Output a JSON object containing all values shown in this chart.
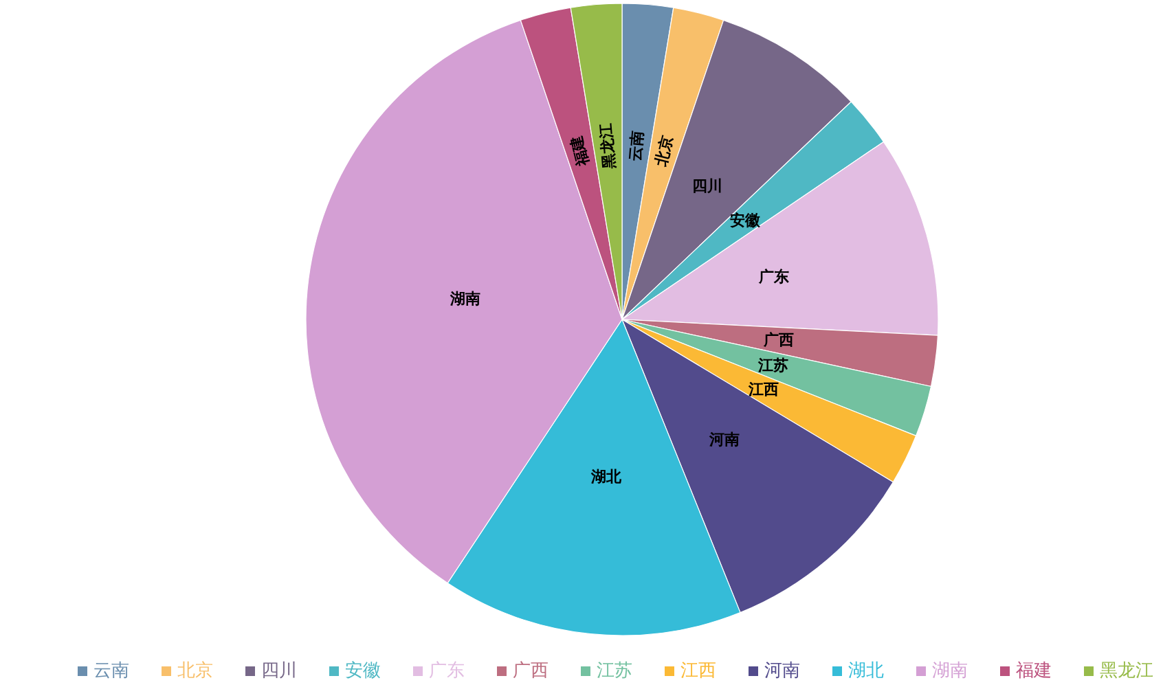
{
  "chart_data": {
    "type": "pie",
    "categories": [
      "云南",
      "北京",
      "四川",
      "安徽",
      "广东",
      "广西",
      "江苏",
      "江西",
      "河南",
      "湖北",
      "湖南",
      "福建",
      "黑龙江"
    ],
    "values": [
      2.6,
      2.6,
      7.7,
      2.6,
      10.3,
      2.6,
      2.6,
      2.6,
      10.3,
      15.4,
      35.5,
      2.6,
      2.6
    ],
    "colors": [
      "#6a8eae",
      "#f8bf6a",
      "#766788",
      "#4fb8c4",
      "#e2bde2",
      "#bd6e80",
      "#73c1a0",
      "#fbb935",
      "#524b8c",
      "#35bcd8",
      "#d49fd4",
      "#bc527e",
      "#97bb4a"
    ],
    "legend": "bottom"
  }
}
